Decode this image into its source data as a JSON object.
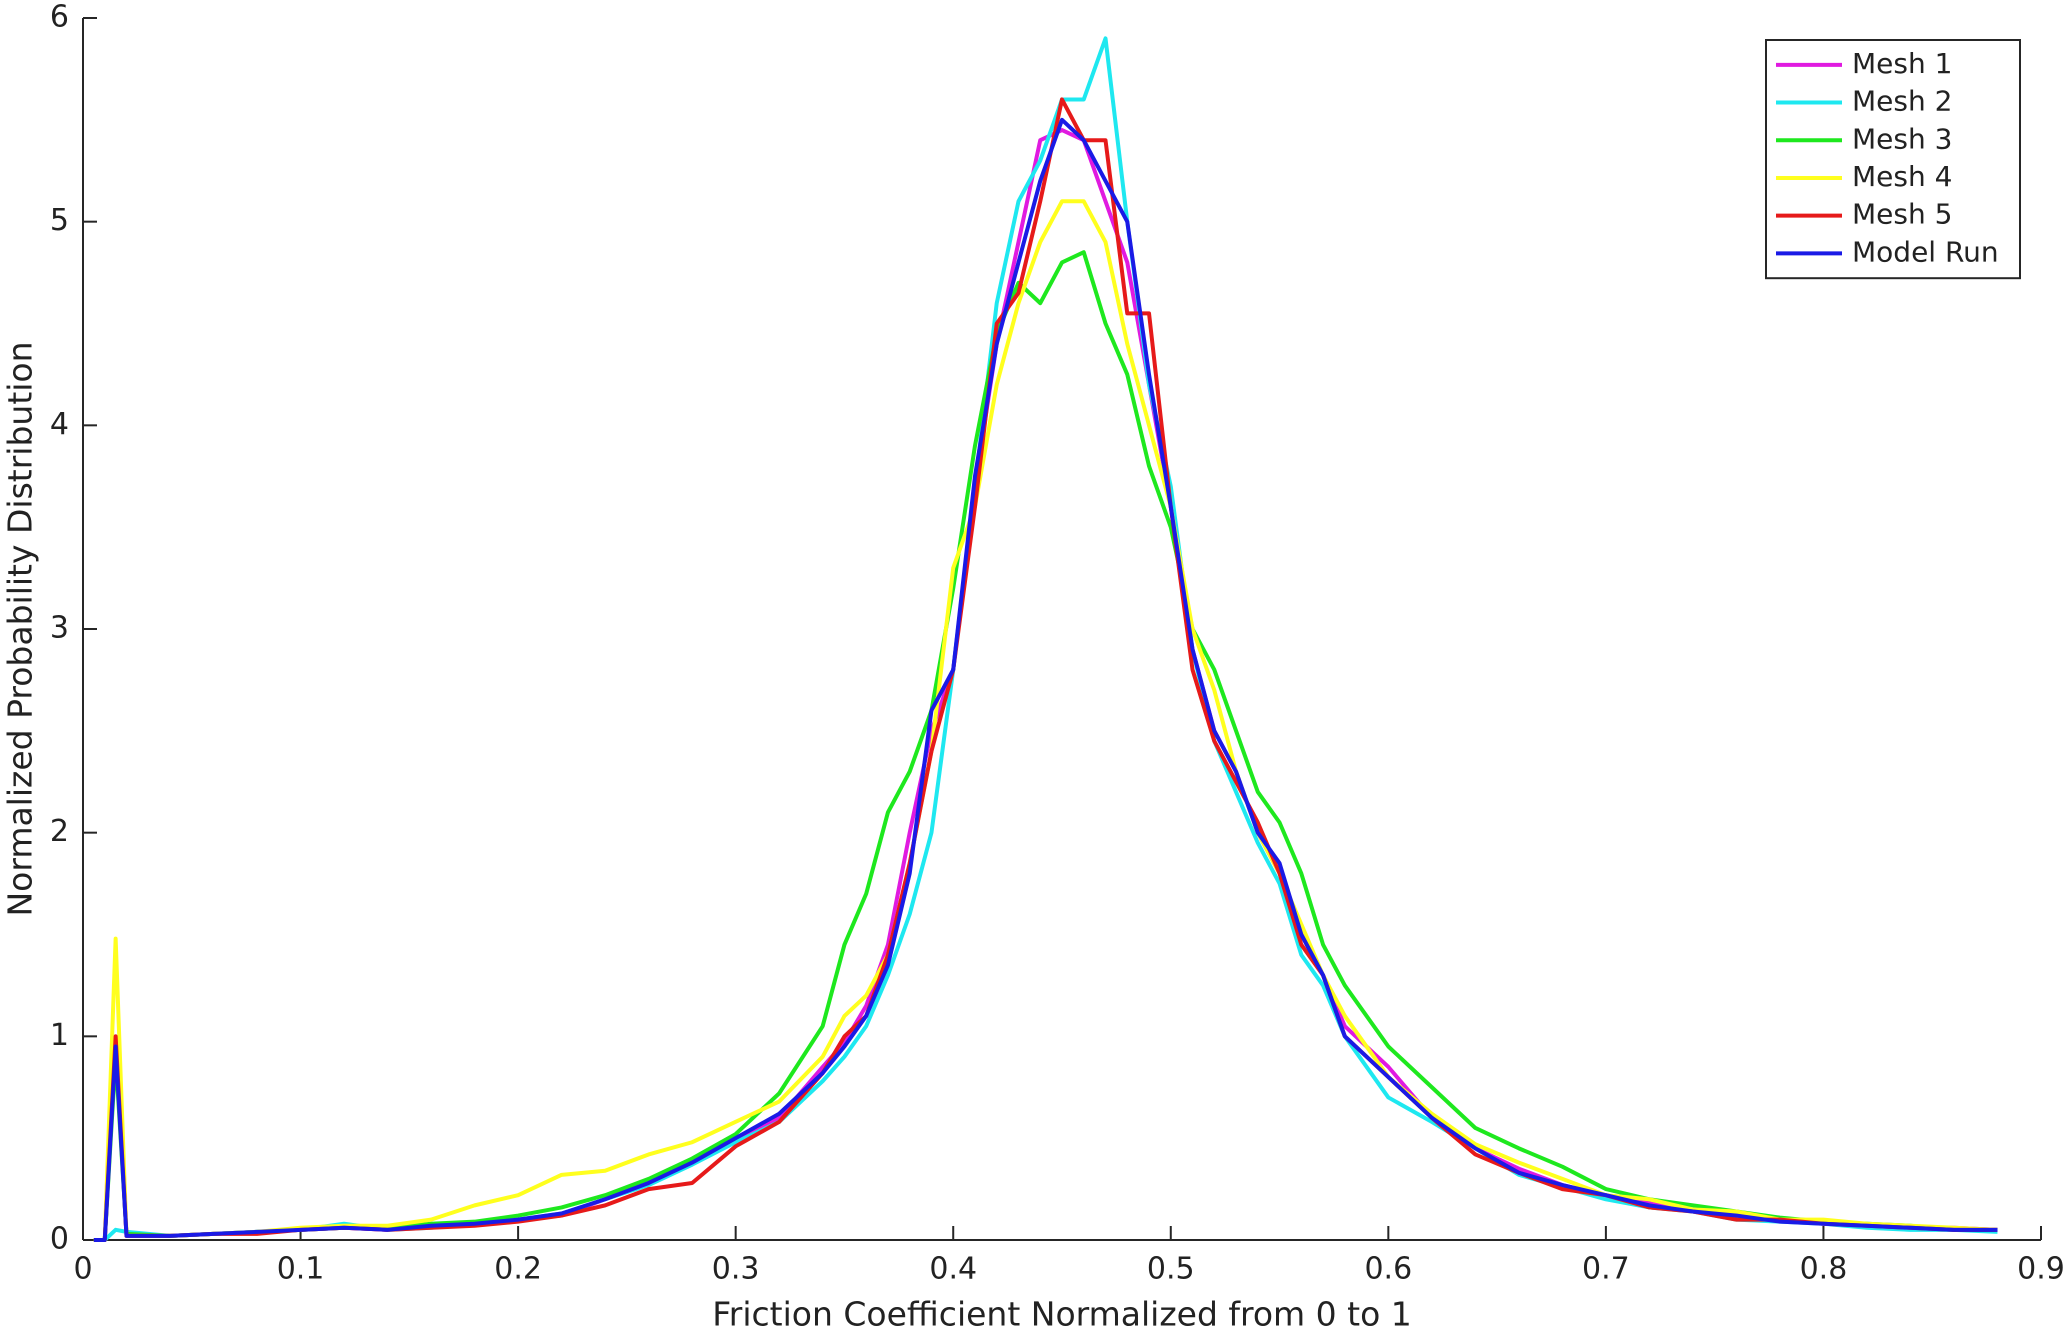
{
  "chart_data": {
    "type": "line",
    "x_label": "Friction Coefficient Normalized from 0 to 1",
    "y_label": "Normalized Probability Distribution",
    "x": [
      0.005,
      0.01,
      0.015,
      0.02,
      0.04,
      0.06,
      0.08,
      0.1,
      0.12,
      0.14,
      0.16,
      0.18,
      0.2,
      0.22,
      0.24,
      0.26,
      0.28,
      0.3,
      0.32,
      0.34,
      0.35,
      0.36,
      0.37,
      0.38,
      0.39,
      0.4,
      0.41,
      0.42,
      0.43,
      0.44,
      0.45,
      0.46,
      0.47,
      0.48,
      0.49,
      0.5,
      0.51,
      0.52,
      0.53,
      0.54,
      0.55,
      0.56,
      0.57,
      0.58,
      0.6,
      0.62,
      0.64,
      0.66,
      0.68,
      0.7,
      0.72,
      0.74,
      0.76,
      0.78,
      0.8,
      0.82,
      0.84,
      0.86,
      0.88
    ],
    "series": [
      {
        "name": "Mesh 1",
        "color": "#e01ae0",
        "values": [
          0,
          0,
          1.0,
          0.02,
          0.02,
          0.03,
          0.04,
          0.05,
          0.06,
          0.05,
          0.07,
          0.08,
          0.1,
          0.12,
          0.2,
          0.28,
          0.38,
          0.5,
          0.6,
          0.85,
          0.97,
          1.15,
          1.45,
          2.0,
          2.5,
          2.8,
          3.7,
          4.4,
          4.9,
          5.4,
          5.45,
          5.4,
          5.1,
          4.8,
          4.2,
          3.6,
          2.9,
          2.5,
          2.3,
          2.0,
          1.8,
          1.5,
          1.3,
          1.05,
          0.85,
          0.6,
          0.45,
          0.35,
          0.27,
          0.22,
          0.18,
          0.14,
          0.12,
          0.1,
          0.08,
          0.07,
          0.06,
          0.06,
          0.05
        ]
      },
      {
        "name": "Mesh 2",
        "color": "#1ee8f0",
        "values": [
          0,
          0,
          0.05,
          0.04,
          0.02,
          0.03,
          0.04,
          0.05,
          0.08,
          0.05,
          0.06,
          0.08,
          0.1,
          0.13,
          0.2,
          0.27,
          0.37,
          0.48,
          0.58,
          0.78,
          0.9,
          1.05,
          1.3,
          1.6,
          2.0,
          2.8,
          3.7,
          4.6,
          5.1,
          5.3,
          5.6,
          5.6,
          5.9,
          5.0,
          4.2,
          3.7,
          2.9,
          2.45,
          2.2,
          1.95,
          1.75,
          1.4,
          1.25,
          1.0,
          0.7,
          0.58,
          0.45,
          0.32,
          0.26,
          0.2,
          0.16,
          0.14,
          0.1,
          0.09,
          0.08,
          0.06,
          0.05,
          0.05,
          0.04
        ]
      },
      {
        "name": "Mesh 3",
        "color": "#1ee81e",
        "values": [
          0,
          0,
          0.9,
          0.03,
          0.02,
          0.03,
          0.04,
          0.05,
          0.06,
          0.06,
          0.08,
          0.09,
          0.12,
          0.16,
          0.22,
          0.3,
          0.4,
          0.52,
          0.72,
          1.05,
          1.45,
          1.7,
          2.1,
          2.3,
          2.6,
          3.2,
          3.9,
          4.45,
          4.7,
          4.6,
          4.8,
          4.85,
          4.5,
          4.25,
          3.8,
          3.5,
          3.0,
          2.8,
          2.5,
          2.2,
          2.05,
          1.8,
          1.45,
          1.25,
          0.95,
          0.75,
          0.55,
          0.45,
          0.36,
          0.25,
          0.2,
          0.17,
          0.14,
          0.11,
          0.09,
          0.08,
          0.07,
          0.05,
          0.05
        ]
      },
      {
        "name": "Mesh 4",
        "color": "#ffff1e",
        "values": [
          0,
          0,
          1.48,
          0.02,
          0.02,
          0.03,
          0.04,
          0.06,
          0.07,
          0.07,
          0.1,
          0.17,
          0.22,
          0.32,
          0.34,
          0.42,
          0.48,
          0.58,
          0.68,
          0.9,
          1.1,
          1.2,
          1.4,
          1.85,
          2.4,
          3.3,
          3.6,
          4.2,
          4.6,
          4.9,
          5.1,
          5.1,
          4.9,
          4.4,
          4.0,
          3.6,
          3.0,
          2.7,
          2.3,
          2.0,
          1.8,
          1.55,
          1.3,
          1.1,
          0.8,
          0.62,
          0.47,
          0.38,
          0.3,
          0.22,
          0.2,
          0.15,
          0.14,
          0.1,
          0.1,
          0.08,
          0.07,
          0.06,
          0.05
        ]
      },
      {
        "name": "Mesh 5",
        "color": "#e61a1a",
        "values": [
          0,
          0,
          1.0,
          0.02,
          0.02,
          0.03,
          0.03,
          0.05,
          0.06,
          0.05,
          0.06,
          0.07,
          0.09,
          0.12,
          0.17,
          0.25,
          0.28,
          0.46,
          0.58,
          0.82,
          1.0,
          1.1,
          1.4,
          1.85,
          2.4,
          2.8,
          3.6,
          4.5,
          4.65,
          5.1,
          5.6,
          5.4,
          5.4,
          4.55,
          4.55,
          3.6,
          2.8,
          2.45,
          2.25,
          2.05,
          1.8,
          1.45,
          1.3,
          1.0,
          0.8,
          0.6,
          0.42,
          0.33,
          0.25,
          0.22,
          0.16,
          0.14,
          0.1,
          0.1,
          0.08,
          0.07,
          0.06,
          0.05,
          0.05
        ]
      },
      {
        "name": "Model Run",
        "color": "#1a1ae6",
        "values": [
          0,
          0,
          0.95,
          0.02,
          0.02,
          0.03,
          0.04,
          0.05,
          0.06,
          0.05,
          0.07,
          0.08,
          0.1,
          0.13,
          0.2,
          0.28,
          0.38,
          0.5,
          0.62,
          0.82,
          0.95,
          1.1,
          1.35,
          1.8,
          2.6,
          2.8,
          3.75,
          4.4,
          4.8,
          5.2,
          5.5,
          5.4,
          5.2,
          5.0,
          4.25,
          3.6,
          2.9,
          2.5,
          2.3,
          2.0,
          1.85,
          1.5,
          1.3,
          1.0,
          0.8,
          0.6,
          0.45,
          0.33,
          0.27,
          0.22,
          0.17,
          0.14,
          0.12,
          0.09,
          0.08,
          0.07,
          0.06,
          0.05,
          0.05
        ]
      }
    ],
    "xlim": [
      0,
      0.9
    ],
    "xticks": [
      0,
      0.1,
      0.2,
      0.3,
      0.4,
      0.5,
      0.6,
      0.7,
      0.8,
      0.9
    ],
    "ylim": [
      0,
      6
    ],
    "yticks": [
      0,
      1,
      2,
      3,
      4,
      5,
      6
    ],
    "legend": "upper right",
    "grid": false
  }
}
